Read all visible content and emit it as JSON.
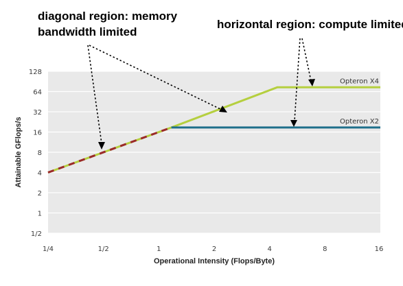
{
  "annotations": {
    "diagonal_line1": "diagonal region: memory",
    "diagonal_line2": "bandwidth limited",
    "horizontal": "horizontal region: compute limited"
  },
  "chart_data": {
    "type": "line",
    "title": "",
    "xlabel": "Operational Intensity (Flops/Byte)",
    "ylabel": "Attainable GFlops/s",
    "x_scale": "log2",
    "y_scale": "log2",
    "xlim": [
      0.25,
      16
    ],
    "ylim": [
      0.5,
      128
    ],
    "x_tick_labels": [
      "1/4",
      "1/2",
      "1",
      "2",
      "4",
      "8",
      "16"
    ],
    "x_tick_values": [
      0.25,
      0.5,
      1,
      2,
      4,
      8,
      16
    ],
    "y_tick_labels": [
      "1/2",
      "1",
      "2",
      "4",
      "8",
      "16",
      "32",
      "64",
      "128"
    ],
    "y_tick_values": [
      0.5,
      1,
      2,
      4,
      8,
      16,
      32,
      64,
      128
    ],
    "grid": true,
    "series": [
      {
        "name": "Opteron X4",
        "color": "#b5cf3f",
        "points": [
          [
            0.25,
            4
          ],
          [
            1.17,
            18.7
          ],
          [
            4.4,
            74
          ],
          [
            16,
            74
          ]
        ]
      },
      {
        "name": "Opteron X2",
        "color": "#1f6f8b",
        "points": [
          [
            1.17,
            18.7
          ],
          [
            16,
            18.7
          ]
        ]
      }
    ],
    "shared_segment": {
      "from": [
        0.25,
        4
      ],
      "to": [
        1.17,
        18.7
      ],
      "dash_color": "#9b2a2a"
    }
  },
  "colors": {
    "plot_background": "#e9e9e9",
    "grid": "#ffffff",
    "x4": "#b5cf3f",
    "x2": "#1f6f8b",
    "dash": "#9b2a2a"
  }
}
